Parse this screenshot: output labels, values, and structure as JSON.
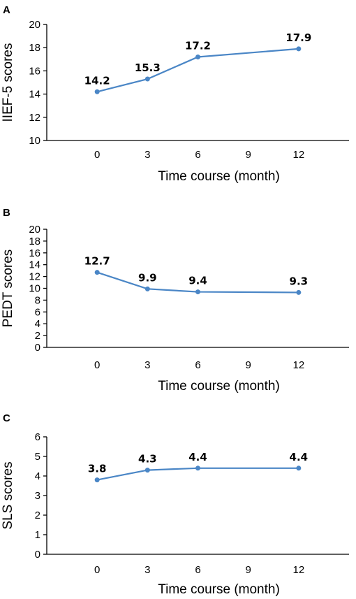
{
  "chart_data": [
    {
      "panel": "A",
      "type": "line",
      "x": [
        0,
        3,
        6,
        12
      ],
      "x_ticks": [
        0,
        3,
        6,
        9,
        12
      ],
      "xlim": [
        -3,
        15
      ],
      "y_ticks": [
        10,
        12,
        14,
        16,
        18,
        20
      ],
      "ylim": [
        10,
        20
      ],
      "series": [
        {
          "values": [
            14.2,
            15.3,
            17.2,
            17.9
          ]
        }
      ],
      "data_labels": [
        "14.2",
        "15.3",
        "17.2",
        "17.9"
      ],
      "xlabel": "Time course (month)",
      "ylabel": "IIEF-5 scores",
      "grid": false,
      "color": "#4a86c6"
    },
    {
      "panel": "B",
      "type": "line",
      "x": [
        0,
        3,
        6,
        12
      ],
      "x_ticks": [
        0,
        3,
        6,
        9,
        12
      ],
      "xlim": [
        -3,
        15
      ],
      "y_ticks": [
        0,
        2,
        4,
        6,
        8,
        10,
        12,
        14,
        16,
        18,
        20
      ],
      "ylim": [
        0,
        20
      ],
      "series": [
        {
          "values": [
            12.7,
            9.9,
            9.4,
            9.3
          ]
        }
      ],
      "data_labels": [
        "12.7",
        "9.9",
        "9.4",
        "9.3"
      ],
      "xlabel": "Time course (month)",
      "ylabel": "PEDT scores",
      "grid": false,
      "color": "#4a86c6"
    },
    {
      "panel": "C",
      "type": "line",
      "x": [
        0,
        3,
        6,
        12
      ],
      "x_ticks": [
        0,
        3,
        6,
        9,
        12
      ],
      "xlim": [
        -3,
        15
      ],
      "y_ticks": [
        0,
        1,
        2,
        3,
        4,
        5,
        6
      ],
      "ylim": [
        0,
        6
      ],
      "series": [
        {
          "values": [
            3.8,
            4.3,
            4.4,
            4.4
          ]
        }
      ],
      "data_labels": [
        "3.8",
        "4.3",
        "4.4",
        "4.4"
      ],
      "xlabel": "Time course (month)",
      "ylabel": "SLS scores",
      "grid": false,
      "color": "#4a86c6"
    }
  ]
}
